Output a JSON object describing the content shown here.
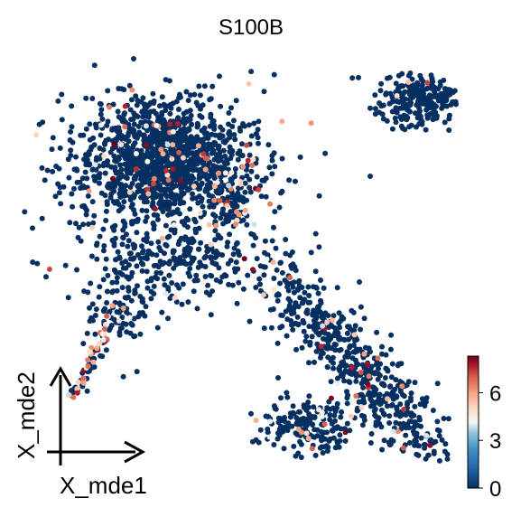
{
  "chart_data": {
    "type": "scatter",
    "title": "S100B",
    "xlabel": "X_mde1",
    "ylabel": "X_mde2",
    "grid": false,
    "legend": "colorbar-right",
    "colormap": "RdBu_r",
    "color_range": [
      0,
      8.3
    ],
    "colorbar_ticks": [
      "0",
      "3",
      "6"
    ],
    "colorbar_tick_values": [
      0,
      3,
      6
    ],
    "colors": {
      "low": "#053061",
      "mid": "#f7f7f7",
      "high": "#67001f"
    },
    "clusters": [
      {
        "name": "upper-left-blob",
        "center": [
          180,
          185
        ],
        "spread": [
          55,
          40
        ],
        "count": 900,
        "expr_fraction": 0.05
      },
      {
        "name": "upper-left-blob-core",
        "center": [
          185,
          170
        ],
        "spread": [
          35,
          25
        ],
        "count": 500,
        "expr_fraction": 0.02
      },
      {
        "name": "upper-left-right-edge",
        "center": [
          255,
          215
        ],
        "spread": [
          18,
          30
        ],
        "count": 60,
        "expr_fraction": 0.55
      },
      {
        "name": "stem-mid",
        "center": [
          190,
          290
        ],
        "spread": [
          55,
          25
        ],
        "count": 260,
        "expr_fraction": 0.03
      },
      {
        "name": "tail-upper",
        "center": [
          130,
          345
        ],
        "spread": [
          18,
          20
        ],
        "count": 90,
        "expr_fraction": 0.08
      },
      {
        "name": "top-right-blob",
        "center": [
          465,
          110
        ],
        "spread": [
          22,
          14
        ],
        "count": 260,
        "expr_fraction": 0.01
      },
      {
        "name": "lower-right-band",
        "center": [
          400,
          410
        ],
        "spread": [
          18,
          90
        ],
        "angle": -0.72,
        "count": 650,
        "expr_fraction": 0.04
      },
      {
        "name": "lower-right-tail",
        "center": [
          340,
          470
        ],
        "spread": [
          25,
          14
        ],
        "count": 180,
        "expr_fraction": 0.1
      }
    ],
    "tail_segment": {
      "from": [
        78,
        445
      ],
      "to": [
        118,
        365
      ],
      "count": 60,
      "expr_fraction": 0.5
    }
  }
}
